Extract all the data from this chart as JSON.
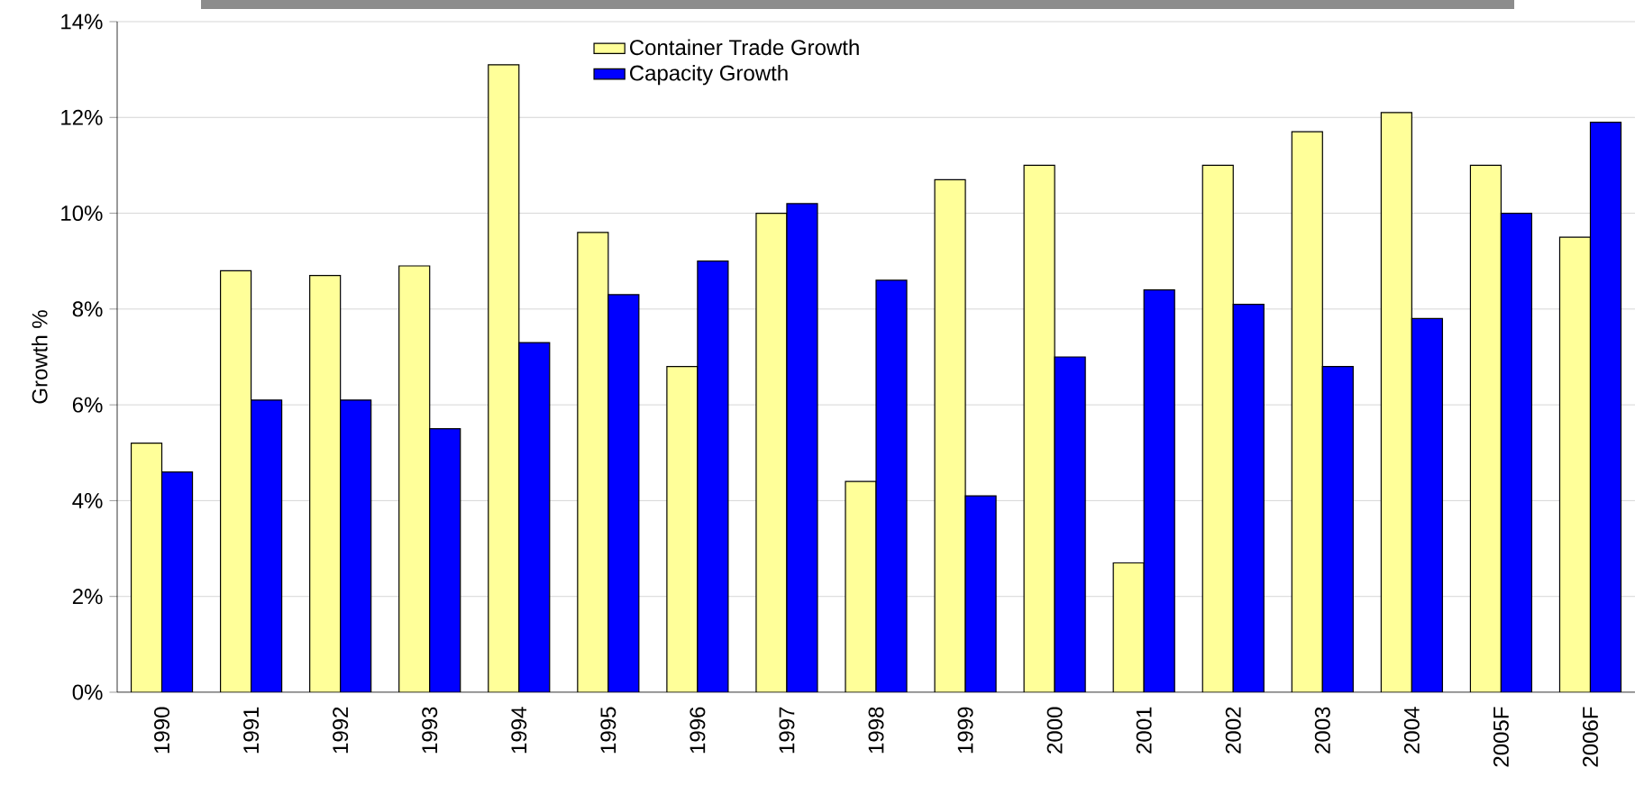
{
  "chart_data": {
    "type": "bar",
    "ylabel": "Growth %",
    "categories": [
      "1990",
      "1991",
      "1992",
      "1993",
      "1994",
      "1995",
      "1996",
      "1997",
      "1998",
      "1999",
      "2000",
      "2001",
      "2002",
      "2003",
      "2004",
      "2005F",
      "2006F"
    ],
    "series": [
      {
        "name": "Container Trade Growth",
        "color": "#ffff99",
        "values": [
          5.2,
          8.8,
          8.7,
          8.9,
          13.1,
          9.6,
          6.8,
          10.0,
          4.4,
          10.7,
          11.0,
          2.7,
          11.0,
          11.7,
          12.1,
          11.0,
          9.5
        ]
      },
      {
        "name": "Capacity Growth",
        "color": "#0000ff",
        "values": [
          4.6,
          6.1,
          6.1,
          5.5,
          7.3,
          8.3,
          9.0,
          10.2,
          8.6,
          4.1,
          7.0,
          8.4,
          8.1,
          6.8,
          7.8,
          10.0,
          11.9
        ]
      }
    ],
    "ylim": [
      0,
      14
    ],
    "yticks": [
      {
        "value": 0,
        "label": "0%"
      },
      {
        "value": 2,
        "label": "2%"
      },
      {
        "value": 4,
        "label": "4%"
      },
      {
        "value": 6,
        "label": "6%"
      },
      {
        "value": 8,
        "label": "8%"
      },
      {
        "value": 10,
        "label": "10%"
      },
      {
        "value": 12,
        "label": "12%"
      },
      {
        "value": 14,
        "label": "14%"
      }
    ],
    "grid": "y",
    "legend": "top"
  }
}
